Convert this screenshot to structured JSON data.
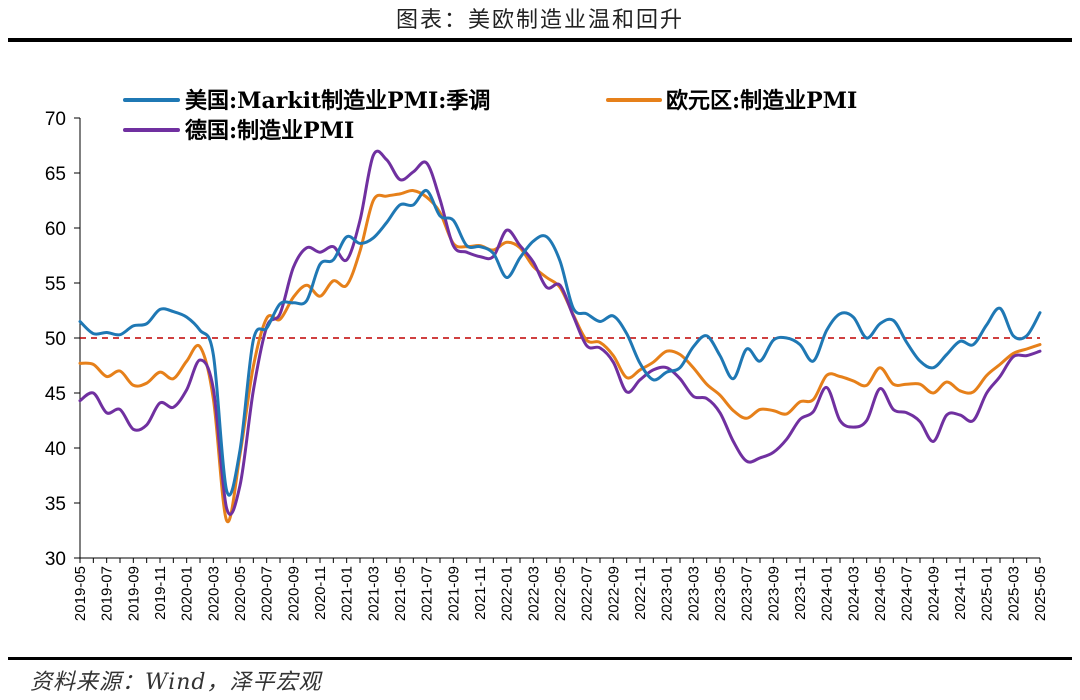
{
  "header": {
    "title": "图表：美欧制造业温和回升"
  },
  "footer": {
    "source": "资料来源：Wind，泽平宏观"
  },
  "colors": {
    "us": "#1f78b4",
    "eu": "#e6801a",
    "de": "#7030a0",
    "reference": "#c00000"
  },
  "chart_data": {
    "type": "line",
    "title": "",
    "xlabel": "",
    "ylabel": "",
    "ylim": [
      30,
      70
    ],
    "yticks": [
      30,
      35,
      40,
      45,
      50,
      55,
      60,
      65,
      70
    ],
    "reference_line": 50,
    "grid": false,
    "legend_position": "top",
    "x": [
      "2019-05",
      "2019-06",
      "2019-07",
      "2019-08",
      "2019-09",
      "2019-10",
      "2019-11",
      "2019-12",
      "2020-01",
      "2020-02",
      "2020-03",
      "2020-04",
      "2020-05",
      "2020-06",
      "2020-07",
      "2020-08",
      "2020-09",
      "2020-10",
      "2020-11",
      "2020-12",
      "2021-01",
      "2021-02",
      "2021-03",
      "2021-04",
      "2021-05",
      "2021-06",
      "2021-07",
      "2021-08",
      "2021-09",
      "2021-10",
      "2021-11",
      "2021-12",
      "2022-01",
      "2022-02",
      "2022-03",
      "2022-04",
      "2022-05",
      "2022-06",
      "2022-07",
      "2022-08",
      "2022-09",
      "2022-10",
      "2022-11",
      "2022-12",
      "2023-01",
      "2023-02",
      "2023-03",
      "2023-04",
      "2023-05",
      "2023-06",
      "2023-07",
      "2023-08",
      "2023-09",
      "2023-10",
      "2023-11",
      "2023-12",
      "2024-01",
      "2024-02",
      "2024-03",
      "2024-04",
      "2024-05",
      "2024-06",
      "2024-07",
      "2024-08",
      "2024-09",
      "2024-10",
      "2024-11",
      "2024-12",
      "2025-01",
      "2025-02",
      "2025-03",
      "2025-04",
      "2025-05"
    ],
    "x_tick_labels": [
      "2019-05",
      "2019-07",
      "2019-09",
      "2019-11",
      "2020-01",
      "2020-03",
      "2020-05",
      "2020-07",
      "2020-09",
      "2020-11",
      "2021-01",
      "2021-03",
      "2021-05",
      "2021-07",
      "2021-09",
      "2021-11",
      "2022-01",
      "2022-03",
      "2022-05",
      "2022-07",
      "2022-09",
      "2022-11",
      "2023-01",
      "2023-03",
      "2023-05",
      "2023-07",
      "2023-09",
      "2023-11",
      "2024-01",
      "2024-03",
      "2024-05",
      "2024-07",
      "2024-09",
      "2024-11",
      "2025-01",
      "2025-03",
      "2025-05"
    ],
    "series": [
      {
        "name": "美国:Markit制造业PMI:季调",
        "color_key": "us",
        "values": [
          51.5,
          50.4,
          50.5,
          50.3,
          51.1,
          51.3,
          52.6,
          52.4,
          51.9,
          50.7,
          48.5,
          36.1,
          39.8,
          49.8,
          50.9,
          53.1,
          53.2,
          53.4,
          56.7,
          57.1,
          59.2,
          58.6,
          59.1,
          60.5,
          62.1,
          62.1,
          63.4,
          61.1,
          60.7,
          58.4,
          58.3,
          57.7,
          55.5,
          57.3,
          58.8,
          59.2,
          57.0,
          52.7,
          52.2,
          51.5,
          52.0,
          50.4,
          47.7,
          46.2,
          46.9,
          47.3,
          49.2,
          50.2,
          48.4,
          46.3,
          49.0,
          47.9,
          49.8,
          50.0,
          49.4,
          47.9,
          50.7,
          52.2,
          51.9,
          50.0,
          51.3,
          51.6,
          49.6,
          47.9,
          47.3,
          48.5,
          49.7,
          49.4,
          51.2,
          52.7,
          50.2,
          50.2,
          52.3
        ]
      },
      {
        "name": "欧元区:制造业PMI",
        "color_key": "eu",
        "values": [
          47.7,
          47.6,
          46.5,
          47.0,
          45.7,
          45.9,
          46.9,
          46.3,
          47.9,
          49.2,
          44.5,
          33.4,
          39.4,
          47.4,
          51.8,
          51.7,
          53.7,
          54.8,
          53.8,
          55.2,
          54.8,
          57.9,
          62.5,
          62.9,
          63.1,
          63.4,
          62.8,
          61.4,
          58.6,
          58.3,
          58.4,
          58.0,
          58.7,
          58.2,
          56.5,
          55.5,
          54.6,
          52.1,
          49.8,
          49.6,
          48.4,
          46.4,
          47.1,
          47.8,
          48.8,
          48.5,
          47.3,
          45.8,
          44.8,
          43.4,
          42.7,
          43.5,
          43.4,
          43.1,
          44.2,
          44.4,
          46.6,
          46.5,
          46.1,
          45.7,
          47.3,
          45.8,
          45.8,
          45.8,
          45.0,
          46.0,
          45.2,
          45.1,
          46.6,
          47.6,
          48.6,
          49.0,
          49.4
        ]
      },
      {
        "name": "德国:制造业PMI",
        "color_key": "de",
        "values": [
          44.3,
          45.0,
          43.2,
          43.5,
          41.7,
          42.1,
          44.1,
          43.7,
          45.3,
          48.0,
          45.4,
          34.5,
          36.6,
          45.2,
          51.0,
          52.2,
          56.4,
          58.2,
          57.8,
          58.3,
          57.1,
          60.7,
          66.6,
          66.2,
          64.4,
          65.1,
          65.9,
          62.6,
          58.4,
          57.8,
          57.4,
          57.4,
          59.8,
          58.4,
          56.9,
          54.6,
          54.8,
          52.0,
          49.3,
          49.1,
          47.8,
          45.1,
          46.2,
          47.1,
          47.3,
          46.3,
          44.7,
          44.5,
          43.2,
          40.6,
          38.8,
          39.1,
          39.6,
          40.8,
          42.6,
          43.3,
          45.5,
          42.5,
          41.9,
          42.5,
          45.4,
          43.5,
          43.2,
          42.4,
          40.6,
          43.0,
          43.0,
          42.5,
          45.0,
          46.5,
          48.3,
          48.4,
          48.8
        ]
      }
    ]
  }
}
